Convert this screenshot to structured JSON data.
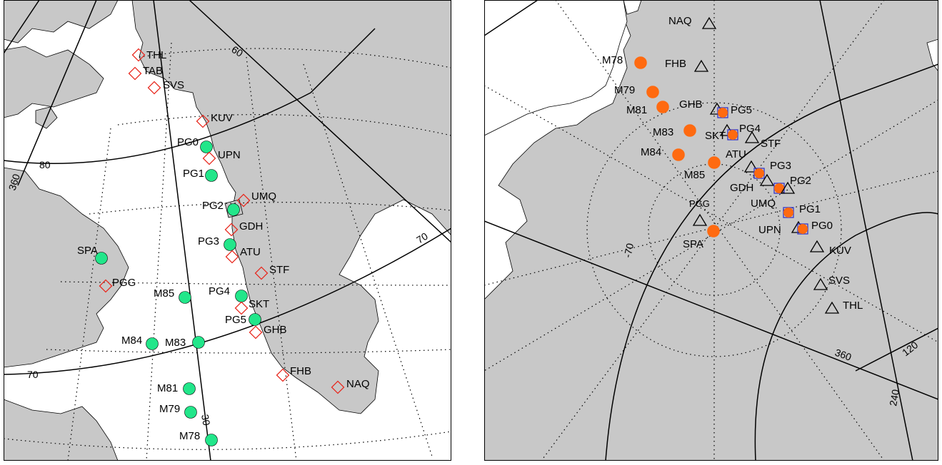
{
  "left_map": {
    "grid_labels": [
      "60",
      "80",
      "360",
      "70",
      "70",
      "30"
    ],
    "stations": [
      {
        "name": "THL",
        "symbol": "diamond"
      },
      {
        "name": "TAB",
        "symbol": "diamond"
      },
      {
        "name": "SVS",
        "symbol": "diamond"
      },
      {
        "name": "KUV",
        "symbol": "diamond"
      },
      {
        "name": "PG0",
        "symbol": "circle"
      },
      {
        "name": "UPN",
        "symbol": "diamond"
      },
      {
        "name": "PG1",
        "symbol": "circle"
      },
      {
        "name": "UMQ",
        "symbol": "diamond"
      },
      {
        "name": "PG2",
        "symbol": "circle"
      },
      {
        "name": "GDH",
        "symbol": "diamond"
      },
      {
        "name": "PG3",
        "symbol": "circle"
      },
      {
        "name": "ATU",
        "symbol": "diamond"
      },
      {
        "name": "SPA",
        "symbol": "circle"
      },
      {
        "name": "STF",
        "symbol": "diamond"
      },
      {
        "name": "PGG",
        "symbol": "diamond"
      },
      {
        "name": "M85",
        "symbol": "circle"
      },
      {
        "name": "PG4",
        "symbol": "circle"
      },
      {
        "name": "SKT",
        "symbol": "diamond"
      },
      {
        "name": "PG5",
        "symbol": "circle"
      },
      {
        "name": "GHB",
        "symbol": "diamond"
      },
      {
        "name": "M84",
        "symbol": "circle"
      },
      {
        "name": "M83",
        "symbol": "circle"
      },
      {
        "name": "FHB",
        "symbol": "diamond"
      },
      {
        "name": "NAQ",
        "symbol": "diamond"
      },
      {
        "name": "M81",
        "symbol": "circle"
      },
      {
        "name": "M79",
        "symbol": "circle"
      },
      {
        "name": "M78",
        "symbol": "circle"
      }
    ]
  },
  "right_map": {
    "grid_labels": [
      "-70",
      "360",
      "120",
      "240"
    ],
    "stations": [
      {
        "name": "NAQ",
        "symbol": "triangle"
      },
      {
        "name": "M78",
        "symbol": "circle"
      },
      {
        "name": "FHB",
        "symbol": "triangle"
      },
      {
        "name": "M79",
        "symbol": "circle"
      },
      {
        "name": "GHB",
        "symbol": "triangle"
      },
      {
        "name": "M81",
        "symbol": "circle"
      },
      {
        "name": "PG5",
        "symbol": "square-circle"
      },
      {
        "name": "M83",
        "symbol": "circle"
      },
      {
        "name": "SKT",
        "symbol": "triangle"
      },
      {
        "name": "PG4",
        "symbol": "square-circle"
      },
      {
        "name": "STF",
        "symbol": "triangle"
      },
      {
        "name": "M84",
        "symbol": "circle"
      },
      {
        "name": "ATU",
        "symbol": "triangle"
      },
      {
        "name": "M85",
        "symbol": "circle"
      },
      {
        "name": "PG3",
        "symbol": "square-circle"
      },
      {
        "name": "GDH",
        "symbol": "triangle"
      },
      {
        "name": "PG2",
        "symbol": "square-circle"
      },
      {
        "name": "UMQ",
        "symbol": "triangle"
      },
      {
        "name": "PG1",
        "symbol": "square-circle"
      },
      {
        "name": "PGG",
        "symbol": "triangle"
      },
      {
        "name": "UPN",
        "symbol": "triangle"
      },
      {
        "name": "PG0",
        "symbol": "square-circle"
      },
      {
        "name": "SPA",
        "symbol": "circle"
      },
      {
        "name": "KUV",
        "symbol": "triangle"
      },
      {
        "name": "SVS",
        "symbol": "triangle"
      },
      {
        "name": "THL",
        "symbol": "triangle"
      }
    ]
  },
  "colors": {
    "land": "#c8c8c8",
    "circle_left": "#22e68a",
    "circle_right": "#ff6a10",
    "diamond": "#e8281e",
    "square": "#3535c8",
    "triangle": "#000000"
  }
}
